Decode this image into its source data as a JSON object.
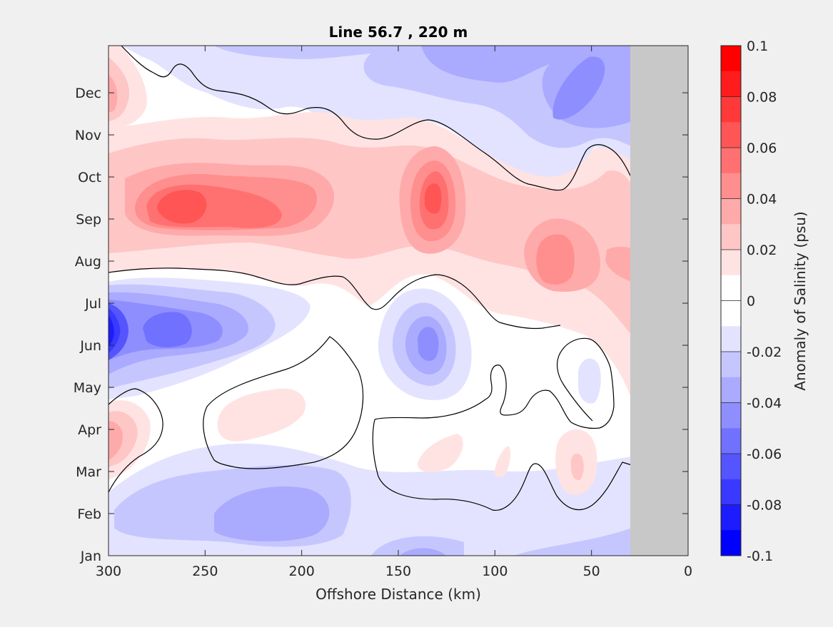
{
  "chart_data": {
    "type": "heatmap",
    "subtype": "filled-contour",
    "title": "Line 56.7 , 220 m",
    "xlabel": "Offshore Distance (km)",
    "ylabel": "",
    "xlim": [
      300,
      0
    ],
    "x_ticks": [
      300,
      250,
      200,
      150,
      100,
      50,
      0
    ],
    "y_ticks": [
      "Jan",
      "Feb",
      "Mar",
      "Apr",
      "May",
      "Jun",
      "Jul",
      "Aug",
      "Sep",
      "Oct",
      "Nov",
      "Dec"
    ],
    "no_data_region_km": [
      30,
      0
    ],
    "colorbar": {
      "label": "Anomaly of Salinity (psu)",
      "range": [
        -0.1,
        0.1
      ],
      "ticks": [
        "0.1",
        "0.08",
        "0.06",
        "0.04",
        "0.02",
        "0",
        "-0.02",
        "-0.04",
        "-0.06",
        "-0.08",
        "-0.1"
      ],
      "levels": [
        {
          "from": 0.09,
          "to": 0.1,
          "color": "#ff0000"
        },
        {
          "from": 0.08,
          "to": 0.09,
          "color": "#ff1c1c"
        },
        {
          "from": 0.07,
          "to": 0.08,
          "color": "#ff3939"
        },
        {
          "from": 0.06,
          "to": 0.07,
          "color": "#ff5555"
        },
        {
          "from": 0.05,
          "to": 0.06,
          "color": "#ff7171"
        },
        {
          "from": 0.04,
          "to": 0.05,
          "color": "#ff8e8e"
        },
        {
          "from": 0.03,
          "to": 0.04,
          "color": "#ffaaaa"
        },
        {
          "from": 0.02,
          "to": 0.03,
          "color": "#ffc6c6"
        },
        {
          "from": 0.01,
          "to": 0.02,
          "color": "#ffe3e3"
        },
        {
          "from": 0.0,
          "to": 0.01,
          "color": "#ffffff"
        },
        {
          "from": -0.01,
          "to": 0.0,
          "color": "#ffffff"
        },
        {
          "from": -0.02,
          "to": -0.01,
          "color": "#e3e3ff"
        },
        {
          "from": -0.03,
          "to": -0.02,
          "color": "#c6c6ff"
        },
        {
          "from": -0.04,
          "to": -0.03,
          "color": "#aaaaff"
        },
        {
          "from": -0.05,
          "to": -0.04,
          "color": "#8e8eff"
        },
        {
          "from": -0.06,
          "to": -0.05,
          "color": "#7171ff"
        },
        {
          "from": -0.07,
          "to": -0.06,
          "color": "#5555ff"
        },
        {
          "from": -0.08,
          "to": -0.07,
          "color": "#3939ff"
        },
        {
          "from": -0.09,
          "to": -0.08,
          "color": "#1c1cff"
        },
        {
          "from": -0.1,
          "to": -0.09,
          "color": "#0000ff"
        }
      ]
    },
    "features": [
      {
        "name": "positive-anomaly-band-aug-oct",
        "km": [
          300,
          30
        ],
        "month": "Aug–Oct",
        "peak": 0.07
      },
      {
        "name": "positive-peak-sep-265km",
        "km": 265,
        "month": "Sep",
        "value": 0.07
      },
      {
        "name": "positive-peak-sep-133km",
        "km": 133,
        "month": "Sep",
        "value": 0.07
      },
      {
        "name": "positive-peak-aug-70km",
        "km": 70,
        "month": "Aug",
        "value": 0.05
      },
      {
        "name": "negative-anomaly-jun-300km",
        "km": 300,
        "month": "Jun",
        "value": -0.1
      },
      {
        "name": "negative-anomaly-jun-265km",
        "km": 265,
        "month": "Jun",
        "value": -0.06
      },
      {
        "name": "negative-anomaly-jun-135km",
        "km": 135,
        "month": "Jun",
        "value": -0.05
      },
      {
        "name": "negative-anomaly-dec-60km",
        "km": 60,
        "month": "Dec",
        "value": -0.05
      },
      {
        "name": "negative-anomaly-feb-200km",
        "km": 200,
        "month": "Feb",
        "value": -0.03
      },
      {
        "name": "positive-anomaly-apr-300km",
        "km": 300,
        "month": "Apr",
        "value": 0.04
      },
      {
        "name": "positive-anomaly-dec-300km",
        "km": 300,
        "month": "Dec",
        "value": 0.03
      }
    ],
    "colors": {
      "no_data": "#c8c8c8",
      "zero_contour": "#000000"
    }
  }
}
